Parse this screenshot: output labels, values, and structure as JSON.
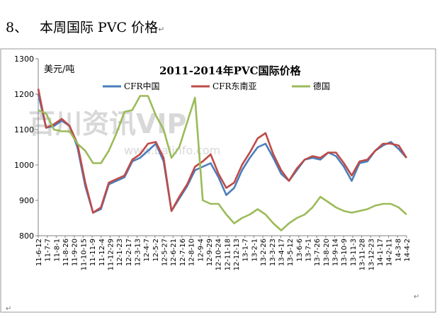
{
  "heading": {
    "number": "8、",
    "title": "本周国际 PVC 价格"
  },
  "paragraph_mark": "↵",
  "corner_mark": "↵",
  "chart_data": {
    "type": "line",
    "title": "2011-2014年PVC国际价格",
    "ylabel": "美元/吨",
    "xlabel": "",
    "ylim": [
      800,
      1300
    ],
    "yticks": [
      800,
      900,
      1000,
      1100,
      1200,
      1300
    ],
    "grid": false,
    "legend_position": "top",
    "watermark": "百川资讯VIP",
    "watermark_url": "www.baiinfo.com",
    "x_tick_labels": [
      "11-6-12",
      "11-7-7",
      "11-8-1",
      "11-8-26",
      "11-9-20",
      "11-10-15",
      "11-11-9",
      "11-12-4",
      "11-12-29",
      "12-1-23",
      "12-2-17",
      "12-3-13",
      "12-4-7",
      "12-5-2",
      "12-5-27",
      "12-6-21",
      "12-7-16",
      "12-8-10",
      "12-9-4",
      "12-9-29",
      "12-10-24",
      "12-11-18",
      "12-12-13",
      "13-1-7",
      "13-2-1",
      "13-2-26",
      "13-3-23",
      "13-4-17",
      "13-5-12",
      "13-6-6",
      "13-7-1",
      "13-7-26",
      "13-8-20",
      "13-9-14",
      "13-10-9",
      "13-11-3",
      "13-11-28",
      "13-12-23",
      "14-1-17",
      "14-2-11",
      "14-3-8",
      "14-4-2"
    ],
    "series": [
      {
        "name": "CFR中国",
        "color": "#4a7ebb",
        "values": [
          1200,
          1105,
          1110,
          1125,
          1110,
          1050,
          940,
          865,
          875,
          945,
          955,
          965,
          1010,
          1020,
          1040,
          1060,
          1010,
          870,
          905,
          940,
          985,
          995,
          1005,
          965,
          915,
          935,
          985,
          1020,
          1050,
          1060,
          1020,
          975,
          955,
          985,
          1015,
          1020,
          1015,
          1035,
          1025,
          995,
          955,
          1005,
          1010,
          1040,
          1055,
          1065,
          1045,
          1020
        ]
      },
      {
        "name": "CFR东南亚",
        "color": "#be4b48",
        "values": [
          1215,
          1105,
          1115,
          1130,
          1110,
          1060,
          950,
          865,
          880,
          950,
          960,
          970,
          1015,
          1030,
          1060,
          1065,
          1020,
          870,
          910,
          945,
          995,
          1010,
          1030,
          975,
          935,
          950,
          1000,
          1035,
          1075,
          1090,
          1030,
          985,
          955,
          990,
          1015,
          1025,
          1020,
          1035,
          1035,
          1005,
          970,
          1010,
          1015,
          1040,
          1060,
          1060,
          1055,
          1020
        ]
      },
      {
        "name": "德国",
        "color": "#9bbb59",
        "values": [
          1155,
          1145,
          1100,
          1095,
          1095,
          1060,
          1040,
          1005,
          1005,
          1040,
          1090,
          1150,
          1155,
          1195,
          1195,
          1140,
          1100,
          1020,
          1050,
          1120,
          1190,
          900,
          890,
          890,
          860,
          835,
          850,
          860,
          875,
          860,
          835,
          815,
          835,
          850,
          860,
          880,
          910,
          895,
          880,
          870,
          865,
          870,
          875,
          885,
          890,
          890,
          880,
          860
        ]
      }
    ]
  }
}
